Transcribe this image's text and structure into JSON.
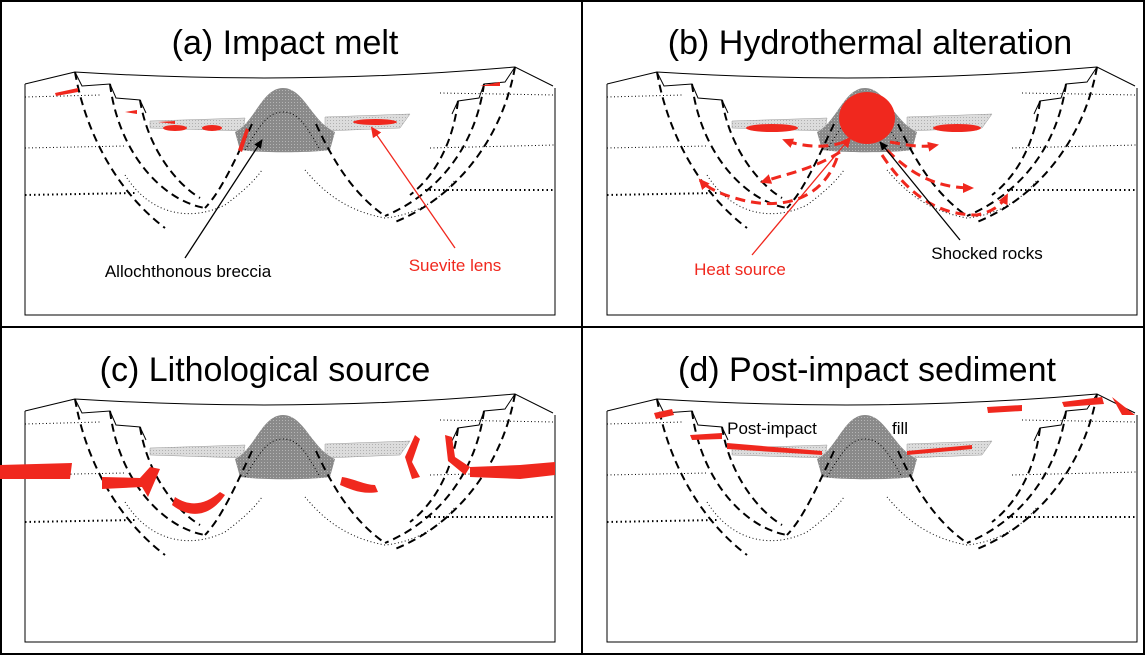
{
  "panels": [
    {
      "title": "(a) Impact melt",
      "labels": [
        "Allochthonous breccia",
        "Suevite lens"
      ]
    },
    {
      "title": "(b) Hydrothermal alteration",
      "labels": [
        "Heat source",
        "Shocked rocks"
      ]
    },
    {
      "title": "(c) Lithological source",
      "labels": []
    },
    {
      "title": "(d) Post-impact sediment",
      "labels": [
        "Post-impact",
        "fill"
      ]
    }
  ]
}
